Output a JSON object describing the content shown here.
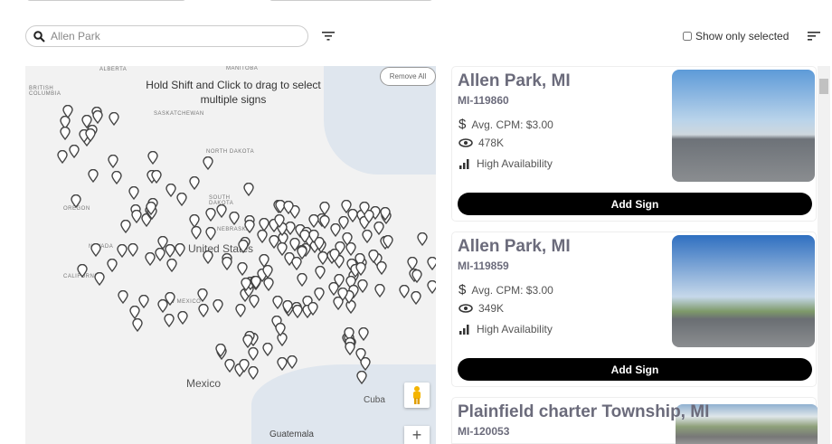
{
  "search": {
    "value": "Allen Park",
    "placeholder": "Allen Park"
  },
  "toolbar": {
    "show_only_selected": "Show only selected",
    "filter_icon": "filter-icon",
    "sort_icon": "sort-icon"
  },
  "map": {
    "hint": "Hold Shift and Click to drag to select multiple signs",
    "remove_all": "Remove All",
    "labels": {
      "alberta": "ALBERTA",
      "manitoba": "MANITOBA",
      "british_columbia": "BRITISH COLUMBIA",
      "saskatchewan": "SASKATCHEWAN",
      "north_dakota": "NORTH DAKOTA",
      "south_dakota": "SOUTH DAKOTA",
      "oregon": "OREGON",
      "nebraska": "NEBRASKA",
      "nevada": "NEVADA",
      "california": "CALIFORNIA",
      "united_states": "United States",
      "new_mexico": "NEW MEXICO",
      "mexico": "Mexico",
      "cuba": "Cuba",
      "guatemala": "Guatemala"
    },
    "zoom_in": "+"
  },
  "listings": [
    {
      "title": "Allen Park, MI",
      "id": "MI-119860",
      "cpm": "Avg. CPM: $3.00",
      "impressions": "478K",
      "availability": "High Availability",
      "button": "Add Sign"
    },
    {
      "title": "Allen Park, MI",
      "id": "MI-119859",
      "cpm": "Avg. CPM: $3.00",
      "impressions": "349K",
      "availability": "High Availability",
      "button": "Add Sign"
    },
    {
      "title": "Plainfield charter Township, MI",
      "id": "MI-120053"
    }
  ]
}
